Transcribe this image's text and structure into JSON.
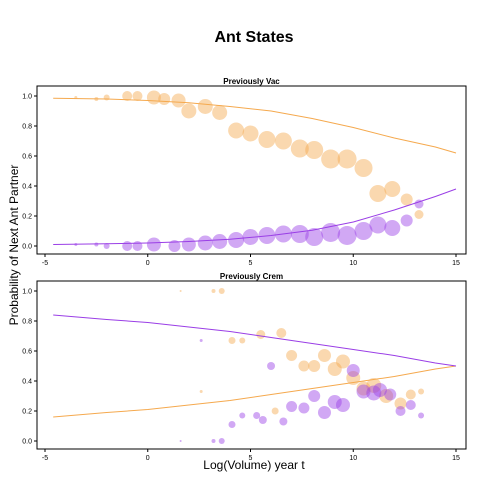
{
  "title": "Ant States",
  "xlabel": "Log(Volume) year t",
  "ylabel": "Probability of Next Ant Partner",
  "colors": {
    "orange": "#f5a94e",
    "purple": "#9a3ee6"
  },
  "chart_data": [
    {
      "type": "scatter",
      "title": "Previously Vac",
      "xlim": [
        -5,
        15
      ],
      "ylim": [
        0,
        1
      ],
      "xticks": [
        "-5",
        "0",
        "5",
        "10",
        "15"
      ],
      "yticks": [
        "0.0",
        "0.2",
        "0.4",
        "0.6",
        "0.8",
        "1.0"
      ],
      "series": [
        {
          "color": "orange",
          "points": [
            {
              "x": -3.5,
              "y": 0.99,
              "s": 1.5
            },
            {
              "x": -2.5,
              "y": 0.98,
              "s": 2
            },
            {
              "x": -2.0,
              "y": 0.99,
              "s": 3
            },
            {
              "x": -1.0,
              "y": 1.0,
              "s": 5
            },
            {
              "x": -0.5,
              "y": 1.0,
              "s": 5
            },
            {
              "x": 0.3,
              "y": 0.99,
              "s": 7
            },
            {
              "x": 0.8,
              "y": 0.98,
              "s": 6
            },
            {
              "x": 1.5,
              "y": 0.97,
              "s": 7
            },
            {
              "x": 2.0,
              "y": 0.9,
              "s": 7.5
            },
            {
              "x": 2.8,
              "y": 0.93,
              "s": 7.5
            },
            {
              "x": 3.5,
              "y": 0.89,
              "s": 7.5
            },
            {
              "x": 4.3,
              "y": 0.77,
              "s": 8
            },
            {
              "x": 5.0,
              "y": 0.75,
              "s": 8
            },
            {
              "x": 5.8,
              "y": 0.71,
              "s": 8.5
            },
            {
              "x": 6.6,
              "y": 0.7,
              "s": 8.5
            },
            {
              "x": 7.4,
              "y": 0.65,
              "s": 9
            },
            {
              "x": 8.1,
              "y": 0.64,
              "s": 9
            },
            {
              "x": 8.9,
              "y": 0.58,
              "s": 9.5
            },
            {
              "x": 9.7,
              "y": 0.58,
              "s": 9.5
            },
            {
              "x": 10.5,
              "y": 0.52,
              "s": 9
            },
            {
              "x": 11.2,
              "y": 0.35,
              "s": 8.5
            },
            {
              "x": 11.9,
              "y": 0.38,
              "s": 8
            },
            {
              "x": 12.6,
              "y": 0.31,
              "s": 6
            },
            {
              "x": 13.2,
              "y": 0.21,
              "s": 4.5
            }
          ],
          "curve": [
            [
              -4.6,
              0.985
            ],
            [
              -2,
              0.98
            ],
            [
              0,
              0.97
            ],
            [
              2,
              0.955
            ],
            [
              4,
              0.93
            ],
            [
              6,
              0.9
            ],
            [
              8,
              0.85
            ],
            [
              10,
              0.79
            ],
            [
              12,
              0.72
            ],
            [
              14,
              0.66
            ],
            [
              15,
              0.62
            ]
          ]
        },
        {
          "color": "purple",
          "points": [
            {
              "x": -3.5,
              "y": 0.01,
              "s": 1.5
            },
            {
              "x": -2.5,
              "y": 0.01,
              "s": 2
            },
            {
              "x": -2.0,
              "y": 0.0,
              "s": 3
            },
            {
              "x": -1.0,
              "y": 0.0,
              "s": 5
            },
            {
              "x": -0.5,
              "y": 0.0,
              "s": 5
            },
            {
              "x": 0.3,
              "y": 0.01,
              "s": 7
            },
            {
              "x": 1.3,
              "y": 0.0,
              "s": 6
            },
            {
              "x": 2.0,
              "y": 0.01,
              "s": 7
            },
            {
              "x": 2.8,
              "y": 0.02,
              "s": 7.5
            },
            {
              "x": 3.5,
              "y": 0.03,
              "s": 7.5
            },
            {
              "x": 4.3,
              "y": 0.04,
              "s": 8
            },
            {
              "x": 5.0,
              "y": 0.06,
              "s": 8
            },
            {
              "x": 5.8,
              "y": 0.07,
              "s": 8.5
            },
            {
              "x": 6.6,
              "y": 0.08,
              "s": 8.5
            },
            {
              "x": 7.4,
              "y": 0.08,
              "s": 9
            },
            {
              "x": 8.1,
              "y": 0.06,
              "s": 9
            },
            {
              "x": 8.9,
              "y": 0.09,
              "s": 9.5
            },
            {
              "x": 9.7,
              "y": 0.07,
              "s": 9.5
            },
            {
              "x": 10.5,
              "y": 0.1,
              "s": 9
            },
            {
              "x": 11.2,
              "y": 0.14,
              "s": 8.5
            },
            {
              "x": 11.9,
              "y": 0.12,
              "s": 8
            },
            {
              "x": 12.6,
              "y": 0.17,
              "s": 6
            },
            {
              "x": 13.2,
              "y": 0.28,
              "s": 4.5
            }
          ],
          "curve": [
            [
              -4.6,
              0.01
            ],
            [
              -2,
              0.015
            ],
            [
              0,
              0.02
            ],
            [
              2,
              0.03
            ],
            [
              4,
              0.045
            ],
            [
              6,
              0.07
            ],
            [
              8,
              0.105
            ],
            [
              10,
              0.16
            ],
            [
              12,
              0.24
            ],
            [
              14,
              0.33
            ],
            [
              15,
              0.38
            ]
          ]
        }
      ]
    },
    {
      "type": "scatter",
      "title": "Previously Crem",
      "xlim": [
        -5,
        15
      ],
      "ylim": [
        0,
        1
      ],
      "xticks": [
        "-5",
        "0",
        "5",
        "10",
        "15"
      ],
      "yticks": [
        "0.0",
        "0.2",
        "0.4",
        "0.6",
        "0.8",
        "1.0"
      ],
      "series": [
        {
          "color": "orange",
          "points": [
            {
              "x": 1.6,
              "y": 1.0,
              "s": 1
            },
            {
              "x": 3.2,
              "y": 1.0,
              "s": 2
            },
            {
              "x": 3.6,
              "y": 1.0,
              "s": 3
            },
            {
              "x": 2.6,
              "y": 0.33,
              "s": 1.5
            },
            {
              "x": 4.1,
              "y": 0.67,
              "s": 3.5
            },
            {
              "x": 4.6,
              "y": 0.67,
              "s": 3
            },
            {
              "x": 5.5,
              "y": 0.71,
              "s": 4.5
            },
            {
              "x": 6.5,
              "y": 0.72,
              "s": 5
            },
            {
              "x": 7.0,
              "y": 0.57,
              "s": 5.5
            },
            {
              "x": 7.6,
              "y": 0.5,
              "s": 5.5
            },
            {
              "x": 8.1,
              "y": 0.5,
              "s": 6
            },
            {
              "x": 8.6,
              "y": 0.57,
              "s": 6.5
            },
            {
              "x": 9.1,
              "y": 0.48,
              "s": 7
            },
            {
              "x": 9.5,
              "y": 0.53,
              "s": 7
            },
            {
              "x": 10.0,
              "y": 0.42,
              "s": 7
            },
            {
              "x": 10.5,
              "y": 0.35,
              "s": 7
            },
            {
              "x": 11.0,
              "y": 0.37,
              "s": 7.5
            },
            {
              "x": 11.6,
              "y": 0.3,
              "s": 7
            },
            {
              "x": 12.3,
              "y": 0.25,
              "s": 6
            },
            {
              "x": 12.8,
              "y": 0.31,
              "s": 5
            },
            {
              "x": 13.3,
              "y": 0.33,
              "s": 3
            },
            {
              "x": 6.2,
              "y": 0.2,
              "s": 3.5
            }
          ],
          "curve": [
            [
              -4.6,
              0.16
            ],
            [
              -2,
              0.19
            ],
            [
              0,
              0.21
            ],
            [
              2,
              0.24
            ],
            [
              4,
              0.27
            ],
            [
              6,
              0.31
            ],
            [
              8,
              0.35
            ],
            [
              10,
              0.39
            ],
            [
              12,
              0.43
            ],
            [
              14,
              0.48
            ],
            [
              15,
              0.5
            ]
          ]
        },
        {
          "color": "purple",
          "points": [
            {
              "x": 1.6,
              "y": 0.0,
              "s": 1
            },
            {
              "x": 3.2,
              "y": 0.0,
              "s": 2
            },
            {
              "x": 3.6,
              "y": 0.0,
              "s": 3
            },
            {
              "x": 2.6,
              "y": 0.67,
              "s": 1.5
            },
            {
              "x": 4.1,
              "y": 0.11,
              "s": 3.5
            },
            {
              "x": 4.6,
              "y": 0.17,
              "s": 3
            },
            {
              "x": 5.3,
              "y": 0.17,
              "s": 3.5
            },
            {
              "x": 5.6,
              "y": 0.14,
              "s": 4
            },
            {
              "x": 6.0,
              "y": 0.5,
              "s": 4
            },
            {
              "x": 6.6,
              "y": 0.13,
              "s": 4
            },
            {
              "x": 7.0,
              "y": 0.23,
              "s": 5.5
            },
            {
              "x": 7.6,
              "y": 0.22,
              "s": 5.5
            },
            {
              "x": 8.1,
              "y": 0.3,
              "s": 6
            },
            {
              "x": 8.6,
              "y": 0.19,
              "s": 6.5
            },
            {
              "x": 9.1,
              "y": 0.26,
              "s": 7
            },
            {
              "x": 9.5,
              "y": 0.24,
              "s": 7
            },
            {
              "x": 10.0,
              "y": 0.47,
              "s": 6.5
            },
            {
              "x": 10.5,
              "y": 0.33,
              "s": 7
            },
            {
              "x": 11.0,
              "y": 0.32,
              "s": 7.5
            },
            {
              "x": 11.3,
              "y": 0.34,
              "s": 7
            },
            {
              "x": 11.8,
              "y": 0.31,
              "s": 6
            },
            {
              "x": 12.3,
              "y": 0.2,
              "s": 5
            },
            {
              "x": 12.8,
              "y": 0.24,
              "s": 5
            },
            {
              "x": 13.3,
              "y": 0.17,
              "s": 3
            }
          ],
          "curve": [
            [
              -4.6,
              0.84
            ],
            [
              -2,
              0.81
            ],
            [
              0,
              0.79
            ],
            [
              2,
              0.76
            ],
            [
              4,
              0.73
            ],
            [
              6,
              0.69
            ],
            [
              8,
              0.65
            ],
            [
              10,
              0.61
            ],
            [
              12,
              0.57
            ],
            [
              14,
              0.52
            ],
            [
              15,
              0.5
            ]
          ]
        }
      ]
    }
  ]
}
